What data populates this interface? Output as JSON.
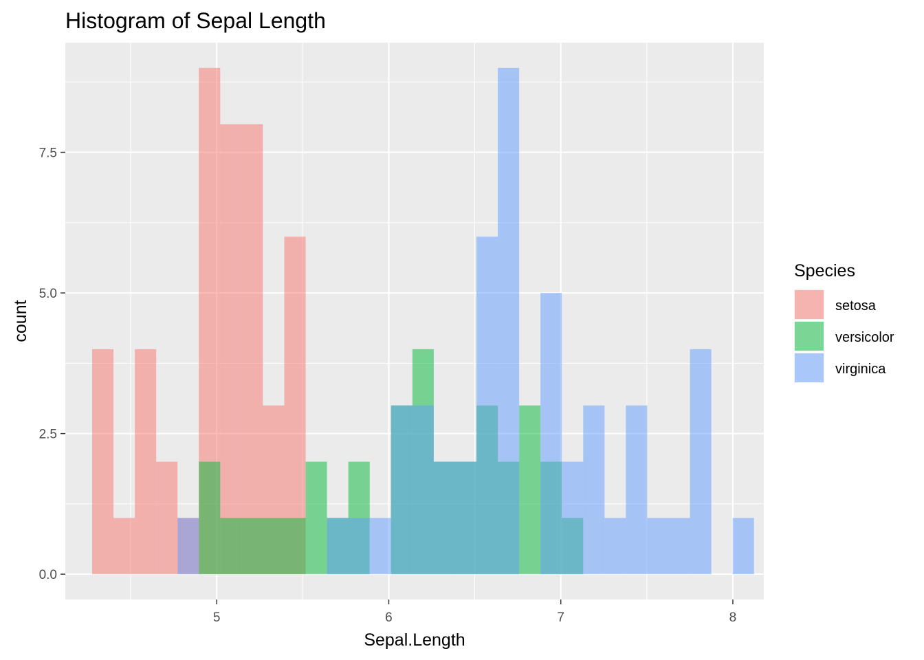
{
  "chart_data": {
    "type": "bar",
    "title": "Histogram of Sepal Length",
    "xlabel": "Sepal.Length",
    "ylabel": "count",
    "xlim": [
      4.12,
      8.18
    ],
    "ylim": [
      -0.45,
      9.45
    ],
    "x_ticks": [
      5,
      6,
      7,
      8
    ],
    "x_tick_labels": [
      "5",
      "6",
      "7",
      "8"
    ],
    "y_ticks": [
      0,
      2.5,
      5,
      7.5
    ],
    "y_tick_labels": [
      "0.0",
      "2.5",
      "5.0",
      "7.5"
    ],
    "bin_start": 4.2759,
    "bin_width": 0.1241,
    "grid": true,
    "legend": {
      "title": "Species",
      "position": "right"
    },
    "series": [
      {
        "name": "setosa",
        "color": "#F8766D",
        "counts": [
          4,
          1,
          4,
          2,
          1,
          9,
          8,
          8,
          3,
          6,
          0,
          0,
          0,
          0,
          0,
          0,
          0,
          0,
          0,
          0,
          0,
          0,
          0,
          0,
          0,
          0,
          0,
          0,
          0,
          0
        ]
      },
      {
        "name": "versicolor",
        "color": "#00BA38",
        "counts": [
          0,
          0,
          0,
          0,
          0,
          2,
          1,
          1,
          1,
          1,
          2,
          1,
          2,
          0,
          3,
          4,
          2,
          2,
          3,
          2,
          3,
          2,
          1,
          0,
          0,
          0,
          0,
          0,
          0,
          0
        ]
      },
      {
        "name": "virginica",
        "color": "#619CFF",
        "counts": [
          0,
          0,
          0,
          0,
          1,
          0,
          0,
          0,
          0,
          0,
          0,
          1,
          1,
          1,
          3,
          3,
          2,
          2,
          6,
          9,
          0,
          5,
          2,
          3,
          1,
          3,
          1,
          1,
          4,
          0
        ]
      }
    ],
    "extra_bins": [
      {
        "series": "virginica",
        "bin_index": 30,
        "count": 1
      }
    ]
  }
}
